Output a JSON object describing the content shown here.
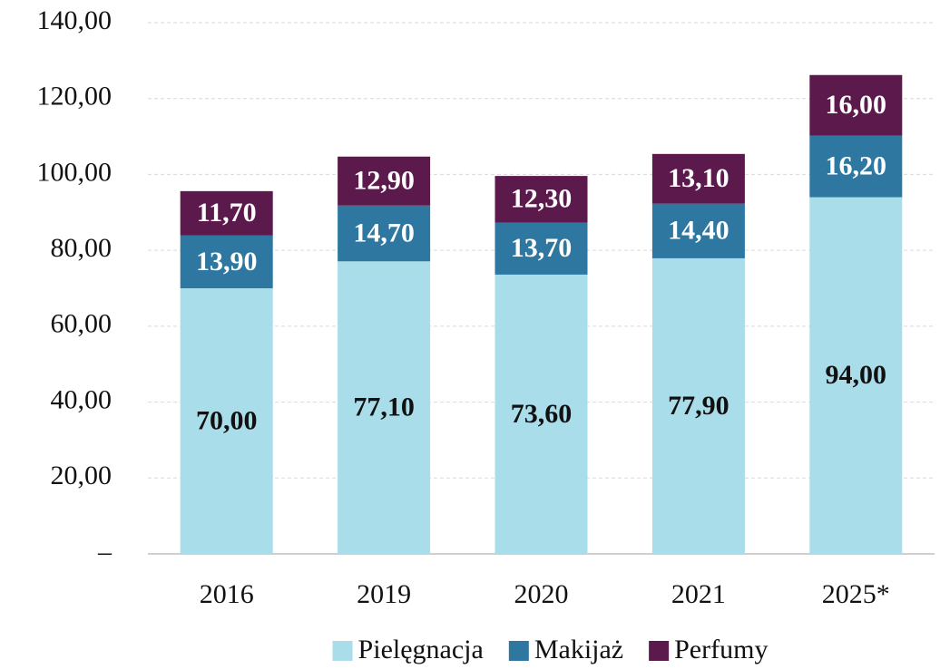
{
  "chart_data": {
    "type": "stacked_bar",
    "categories": [
      "2016",
      "2019",
      "2020",
      "2021",
      "2025*"
    ],
    "series": [
      {
        "name": "Pielęgnacja",
        "color": "#a8dde9",
        "values": [
          70.0,
          77.1,
          73.6,
          77.9,
          94.0
        ],
        "value_labels": [
          "70,00",
          "77,10",
          "73,60",
          "77,90",
          "94,00"
        ]
      },
      {
        "name": "Makijaż",
        "color": "#2e77a0",
        "values": [
          13.9,
          14.7,
          13.7,
          14.4,
          16.2
        ],
        "value_labels": [
          "13,90",
          "14,70",
          "13,70",
          "14,40",
          "16,20"
        ]
      },
      {
        "name": "Perfumy",
        "color": "#5b1a4b",
        "values": [
          11.7,
          12.9,
          12.3,
          13.1,
          16.0
        ],
        "value_labels": [
          "11,70",
          "12,90",
          "12,30",
          "13,10",
          "16,00"
        ]
      }
    ],
    "ylim": [
      0,
      140
    ],
    "yticks": [
      {
        "value": 0,
        "label": "–"
      },
      {
        "value": 20,
        "label": "20,00"
      },
      {
        "value": 40,
        "label": "40,00"
      },
      {
        "value": 60,
        "label": "60,00"
      },
      {
        "value": 80,
        "label": "80,00"
      },
      {
        "value": 100,
        "label": "100,00"
      },
      {
        "value": 120,
        "label": "120,00"
      },
      {
        "value": 140,
        "label": "140,00"
      }
    ],
    "grid": true,
    "legend": "bottom"
  }
}
